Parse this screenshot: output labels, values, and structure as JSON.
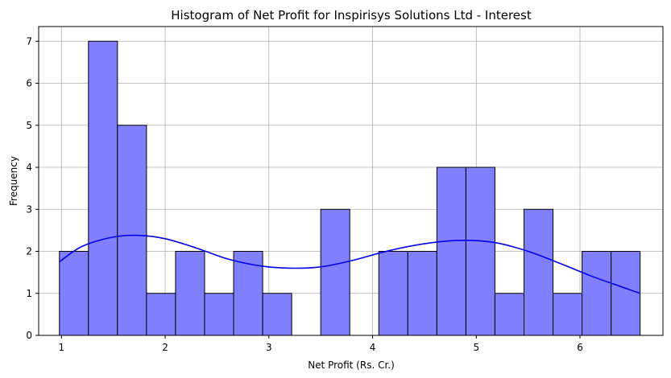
{
  "chart_data": {
    "type": "bar",
    "title": "Histogram of Net Profit for Inspirisys Solutions Ltd - Interest",
    "xlabel": "Net Profit (Rs. Cr.)",
    "ylabel": "Frequency",
    "xlim": [
      0.78,
      6.8
    ],
    "ylim": [
      0,
      7.35
    ],
    "xticks": [
      1,
      2,
      3,
      4,
      5,
      6
    ],
    "yticks": [
      0,
      1,
      2,
      3,
      4,
      5,
      6,
      7
    ],
    "grid": true,
    "bin_edges": [
      0.98,
      1.26,
      1.54,
      1.82,
      2.1,
      2.38,
      2.66,
      2.94,
      3.22,
      3.5,
      3.78,
      4.06,
      4.34,
      4.62,
      4.9,
      5.18,
      5.46,
      5.74,
      6.02,
      6.3,
      6.58
    ],
    "counts": [
      2,
      7,
      5,
      1,
      2,
      1,
      2,
      1,
      0,
      3,
      0,
      2,
      2,
      4,
      4,
      1,
      3,
      1,
      2,
      2
    ],
    "bar_color": "#8080ff",
    "edge_color": "#000000",
    "kde": {
      "color": "#0000ee",
      "x": [
        0.98,
        1.2,
        1.5,
        1.75,
        2.0,
        2.3,
        2.6,
        2.9,
        3.2,
        3.5,
        3.8,
        4.1,
        4.4,
        4.7,
        4.95,
        5.2,
        5.5,
        5.8,
        6.1,
        6.35,
        6.58
      ],
      "y": [
        1.75,
        2.12,
        2.34,
        2.38,
        2.3,
        2.08,
        1.82,
        1.66,
        1.6,
        1.63,
        1.78,
        1.98,
        2.14,
        2.24,
        2.26,
        2.2,
        2.0,
        1.72,
        1.42,
        1.2,
        1.0
      ]
    }
  }
}
